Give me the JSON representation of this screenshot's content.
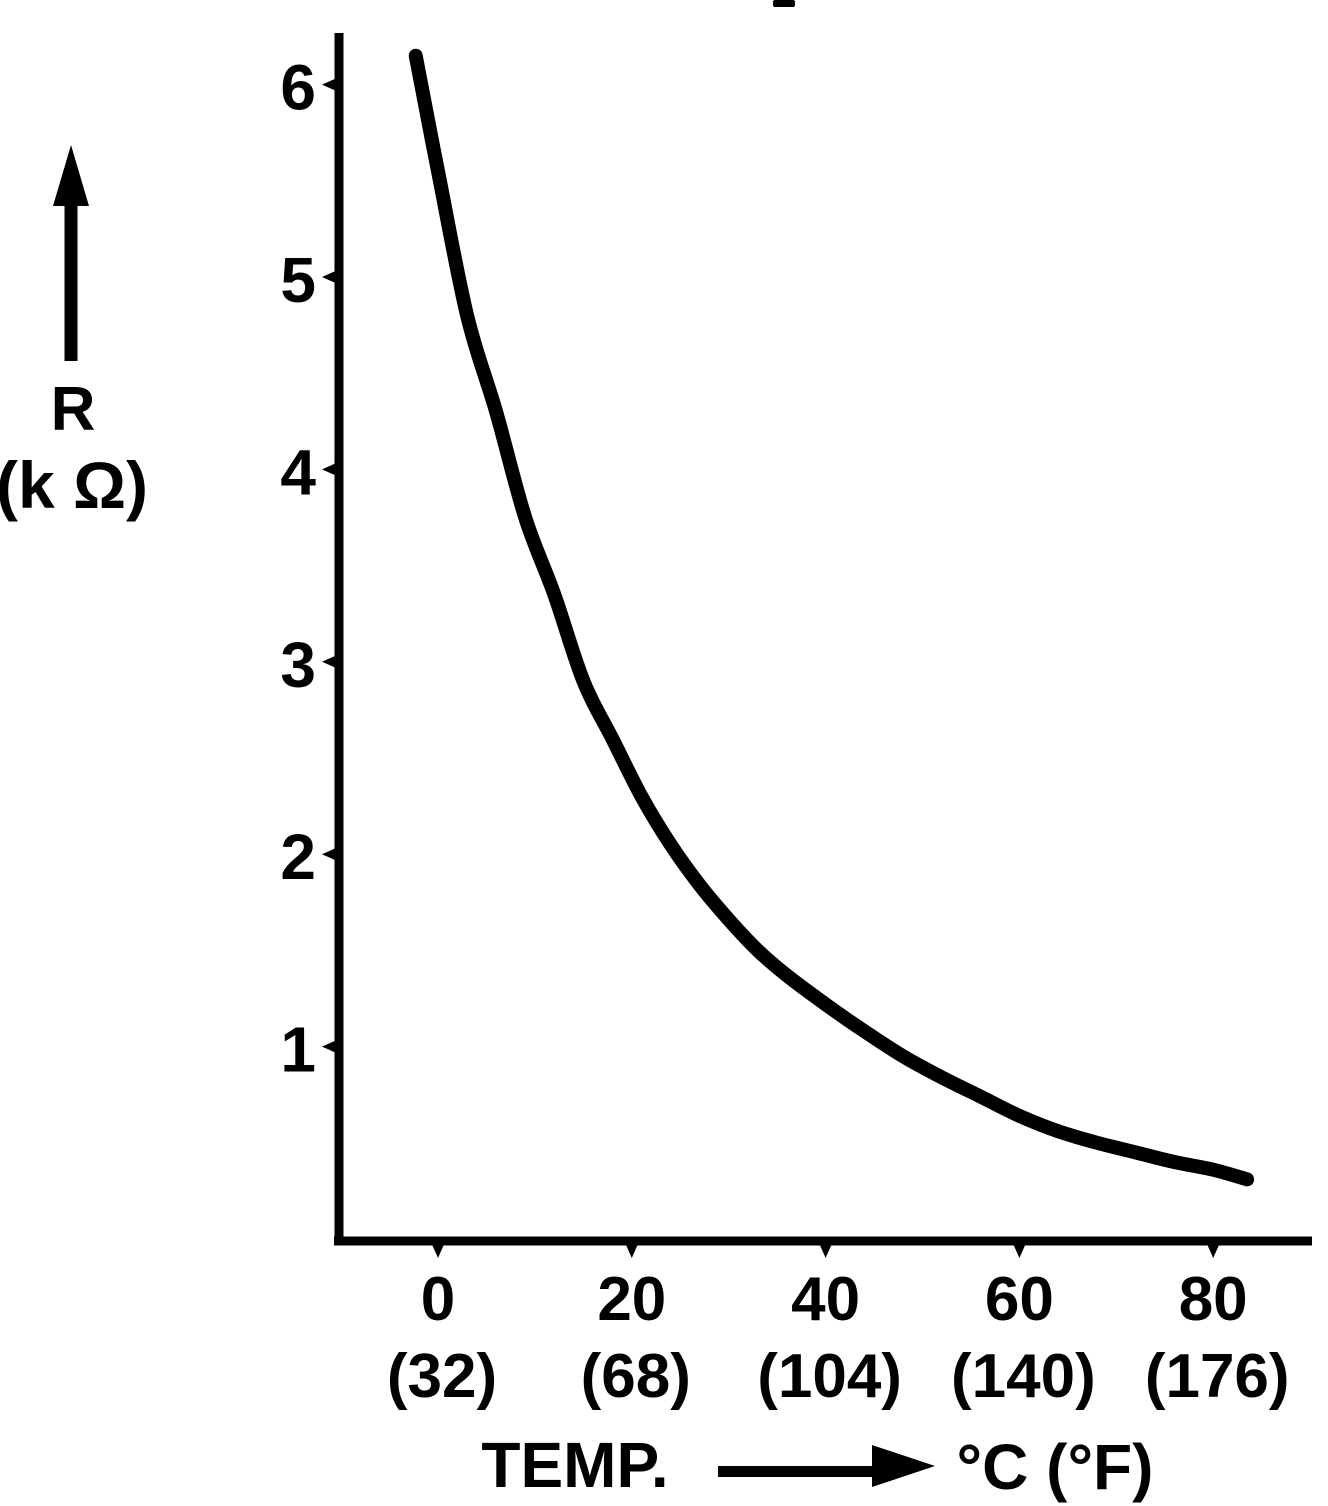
{
  "figure": {
    "background_color": "#ffffff",
    "ink_color": "#000000",
    "description": "Scanned figure: NTC thermistor resistance versus temperature curve"
  },
  "icons": {
    "y_axis_direction": "up-arrow",
    "x_axis_direction": "right-arrow"
  },
  "y_axis": {
    "symbol": "R",
    "unit": "(k Ω)",
    "tick_labels": [
      "6",
      "5",
      "4",
      "3",
      "2",
      "1"
    ]
  },
  "x_axis": {
    "title": "TEMP.",
    "unit": "°C (°F)",
    "tick_labels_celsius": [
      "0",
      "20",
      "40",
      "60",
      "80"
    ],
    "tick_labels_fahrenheit": [
      "(32)",
      "(68)",
      "(104)",
      "(140)",
      "(176)"
    ]
  },
  "chart_data": {
    "type": "line",
    "title": "",
    "xlabel": "TEMP. °C (°F)",
    "ylabel": "R (kΩ)",
    "xlim": [
      -11,
      92
    ],
    "ylim": [
      0,
      6.3
    ],
    "x_ticks_celsius": [
      0,
      20,
      40,
      60,
      80
    ],
    "x_ticks_fahrenheit": [
      32,
      68,
      104,
      140,
      176
    ],
    "y_ticks": [
      6,
      5,
      4,
      3,
      2,
      1
    ],
    "grid": false,
    "legend_position": "none",
    "series": [
      {
        "name": "thermistor resistance vs temperature",
        "x_unit": "degC",
        "y_unit": "kOhm",
        "points": [
          [
            -2.3,
            6.15
          ],
          [
            0,
            5.55
          ],
          [
            3,
            4.8
          ],
          [
            6,
            4.3
          ],
          [
            9,
            3.75
          ],
          [
            12,
            3.35
          ],
          [
            15,
            2.9
          ],
          [
            18,
            2.6
          ],
          [
            21,
            2.3
          ],
          [
            24,
            2.05
          ],
          [
            27,
            1.84
          ],
          [
            30,
            1.66
          ],
          [
            33,
            1.5
          ],
          [
            36,
            1.37
          ],
          [
            40,
            1.22
          ],
          [
            44,
            1.08
          ],
          [
            48,
            0.95
          ],
          [
            52,
            0.84
          ],
          [
            56,
            0.74
          ],
          [
            60,
            0.64
          ],
          [
            64,
            0.56
          ],
          [
            68,
            0.5
          ],
          [
            72,
            0.45
          ],
          [
            76,
            0.4
          ],
          [
            80,
            0.36
          ],
          [
            83.5,
            0.31
          ]
        ]
      }
    ]
  }
}
